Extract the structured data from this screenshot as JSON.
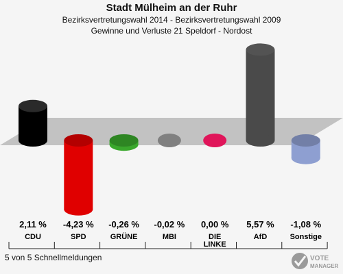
{
  "header": {
    "title": "Stadt Mülheim an der Ruhr",
    "subtitle1": "Bezirksvertretungswahl 2014 - Bezirksvertretungswahl 2009",
    "subtitle2": "Gewinne und Verluste 21 Speldorf - Nordost"
  },
  "footer": {
    "status": "5 von 5 Schnellmeldungen"
  },
  "logo": {
    "text_line1": "VOTE",
    "text_line2": "MANAGER"
  },
  "chart_data": {
    "type": "bar",
    "title": "Stadt Mülheim an der Ruhr",
    "categories": [
      "CDU",
      "SPD",
      "GRÜNE",
      "MBI",
      "DIE LINKE",
      "AfD",
      "Sonstige"
    ],
    "category_lines": [
      [
        "CDU"
      ],
      [
        "SPD"
      ],
      [
        "GRÜNE"
      ],
      [
        "MBI"
      ],
      [
        "DIE",
        "LINKE"
      ],
      [
        "AfD"
      ],
      [
        "Sonstige"
      ]
    ],
    "values": [
      2.11,
      -4.23,
      -0.26,
      -0.02,
      0.0,
      5.57,
      -1.08
    ],
    "value_labels": [
      "2,11 %",
      "-4,23 %",
      "-0,26 %",
      "-0,02 %",
      "0,00 %",
      "5,57 %",
      "-1,08 %"
    ],
    "colors": [
      "#000000",
      "#e00000",
      "#3aa82c",
      "#808080",
      "#e0155a",
      "#4a4a4a",
      "#8e9fd1"
    ],
    "ylim": [
      -4.5,
      6.0
    ],
    "grid": false
  }
}
